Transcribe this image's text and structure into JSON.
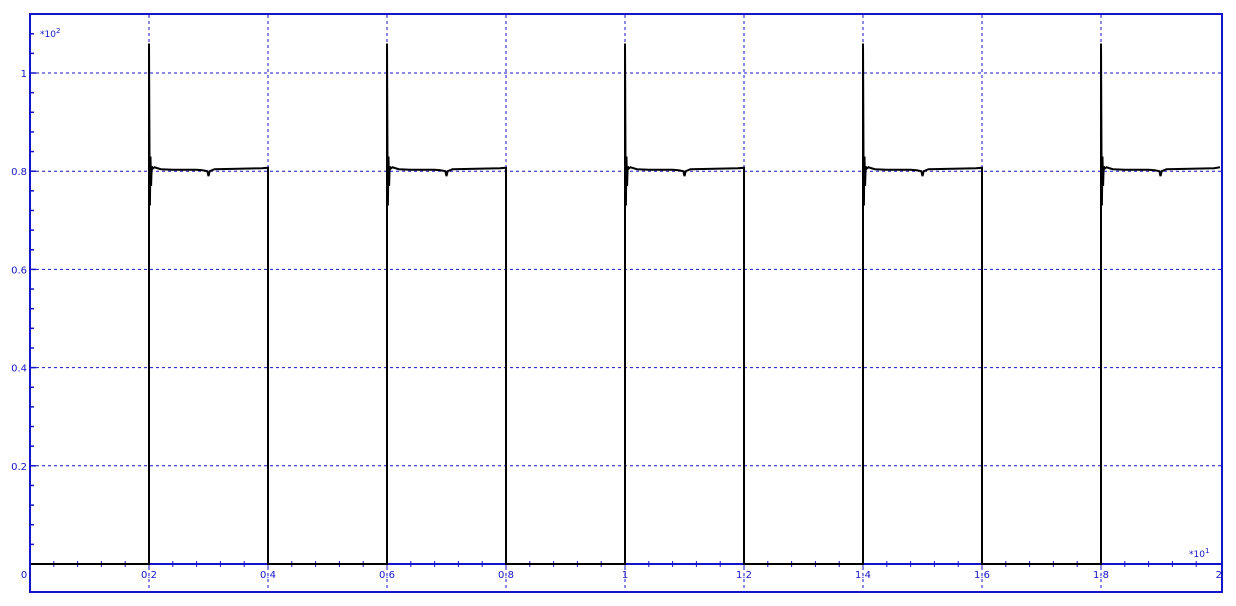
{
  "chart_data": {
    "type": "line",
    "title": "",
    "xlabel": "",
    "ylabel": "",
    "xlim": [
      0,
      2.0
    ],
    "ylim": [
      -0.017,
      1.1
    ],
    "x_multiplier": "*10",
    "x_multiplier_exp": "1",
    "y_multiplier": "*10",
    "y_multiplier_exp": "2",
    "x_ticks": [
      0,
      0.2,
      0.4,
      0.6,
      0.8,
      1.0,
      1.2,
      1.4,
      1.6,
      1.8,
      2.0
    ],
    "x_tick_labels": [
      "0",
      "0.2",
      "0.4",
      "0.6",
      "0.8",
      "1",
      "1.2",
      "1.4",
      "1.6",
      "1.8",
      "2"
    ],
    "y_ticks": [
      0.2,
      0.4,
      0.6,
      0.8,
      1.0
    ],
    "y_tick_labels": [
      "0.2",
      "0.4",
      "0.6",
      "0.8",
      "1"
    ],
    "grid": true,
    "legend": "none",
    "colors": {
      "axis": "#1414c8",
      "grid": "#1414c8",
      "line": "#000000",
      "background": "#ffffff"
    },
    "series": [
      {
        "x": [
          0,
          0.2,
          0.2,
          0.201,
          0.2015,
          0.2025,
          0.2035,
          0.2045,
          0.206,
          0.209,
          0.22,
          0.24,
          0.28,
          0.29,
          0.298,
          0.3,
          0.302,
          0.31,
          0.35,
          0.39,
          0.4,
          0.4,
          0.6,
          0.6,
          0.601,
          0.6015,
          0.6025,
          0.6035,
          0.6045,
          0.606,
          0.609,
          0.62,
          0.64,
          0.68,
          0.69,
          0.698,
          0.7,
          0.702,
          0.71,
          0.75,
          0.79,
          0.8,
          0.8,
          1.0,
          1.0,
          1.001,
          1.0015,
          1.0025,
          1.0035,
          1.0045,
          1.006,
          1.009,
          1.02,
          1.04,
          1.08,
          1.09,
          1.098,
          1.1,
          1.102,
          1.11,
          1.15,
          1.19,
          1.2,
          1.2,
          1.4,
          1.4,
          1.401,
          1.4015,
          1.4025,
          1.4035,
          1.4045,
          1.406,
          1.409,
          1.42,
          1.44,
          1.48,
          1.49,
          1.498,
          1.5,
          1.502,
          1.51,
          1.55,
          1.59,
          1.6,
          1.6,
          1.8,
          1.8,
          1.801,
          1.8015,
          1.8025,
          1.8035,
          1.8045,
          1.806,
          1.809,
          1.82,
          1.84,
          1.88,
          1.89,
          1.898,
          1.9,
          1.902,
          1.91,
          1.95,
          1.99,
          2.0
        ],
        "y": [
          0,
          0,
          1.06,
          0.78,
          0.73,
          0.83,
          0.77,
          0.81,
          0.805,
          0.808,
          0.804,
          0.803,
          0.803,
          0.802,
          0.8,
          0.79,
          0.8,
          0.804,
          0.805,
          0.806,
          0.807,
          0,
          0,
          1.06,
          0.78,
          0.73,
          0.83,
          0.77,
          0.81,
          0.805,
          0.808,
          0.804,
          0.803,
          0.803,
          0.802,
          0.8,
          0.79,
          0.8,
          0.804,
          0.805,
          0.806,
          0.807,
          0,
          0,
          1.06,
          0.78,
          0.73,
          0.83,
          0.77,
          0.81,
          0.805,
          0.808,
          0.804,
          0.803,
          0.803,
          0.802,
          0.8,
          0.79,
          0.8,
          0.804,
          0.805,
          0.806,
          0.807,
          0,
          0,
          1.06,
          0.78,
          0.73,
          0.83,
          0.77,
          0.81,
          0.805,
          0.808,
          0.804,
          0.803,
          0.803,
          0.802,
          0.8,
          0.79,
          0.8,
          0.804,
          0.805,
          0.806,
          0.807,
          0,
          0,
          1.06,
          0.78,
          0.73,
          0.83,
          0.77,
          0.81,
          0.805,
          0.808,
          0.804,
          0.803,
          0.803,
          0.802,
          0.8,
          0.79,
          0.8,
          0.804,
          0.805,
          0.806,
          0.808
        ]
      }
    ]
  }
}
